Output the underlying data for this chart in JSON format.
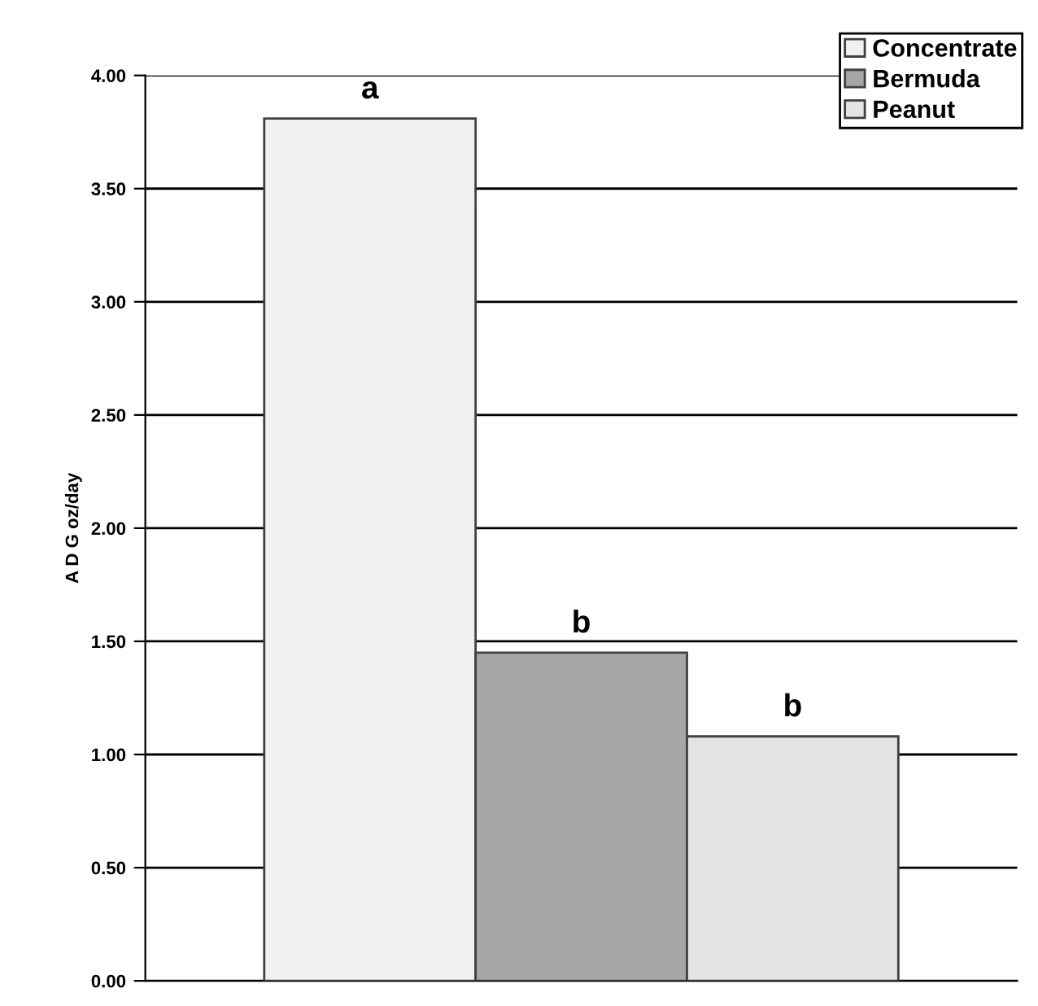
{
  "chart_data": {
    "type": "bar",
    "ylabel": "A D G oz/day",
    "categories": [
      null
    ],
    "series": [
      {
        "name": "Concentrate",
        "color": "#f0f0f0",
        "values": [
          3.81
        ]
      },
      {
        "name": "Bermuda",
        "color": "#a6a6a6",
        "values": [
          1.45
        ]
      },
      {
        "name": "Peanut",
        "color": "#e4e4e4",
        "values": [
          1.08
        ]
      }
    ],
    "annotations": [
      {
        "text": "a",
        "y": 3.81
      },
      {
        "text": "b",
        "y": 1.45
      },
      {
        "text": "b",
        "y": 1.08
      }
    ],
    "ylim": [
      0,
      4
    ],
    "yticks": [
      {
        "value": 0,
        "label": "0.00"
      },
      {
        "value": 0.5,
        "label": "0.50"
      },
      {
        "value": 1,
        "label": "1.00"
      },
      {
        "value": 1.5,
        "label": "1.50"
      },
      {
        "value": 2,
        "label": "2.00"
      },
      {
        "value": 2.5,
        "label": "2.50"
      },
      {
        "value": 3,
        "label": "3.00"
      },
      {
        "value": 3.5,
        "label": "3.50"
      },
      {
        "value": 4,
        "label": "4.00"
      }
    ],
    "grid": "y",
    "legend": "top right"
  }
}
